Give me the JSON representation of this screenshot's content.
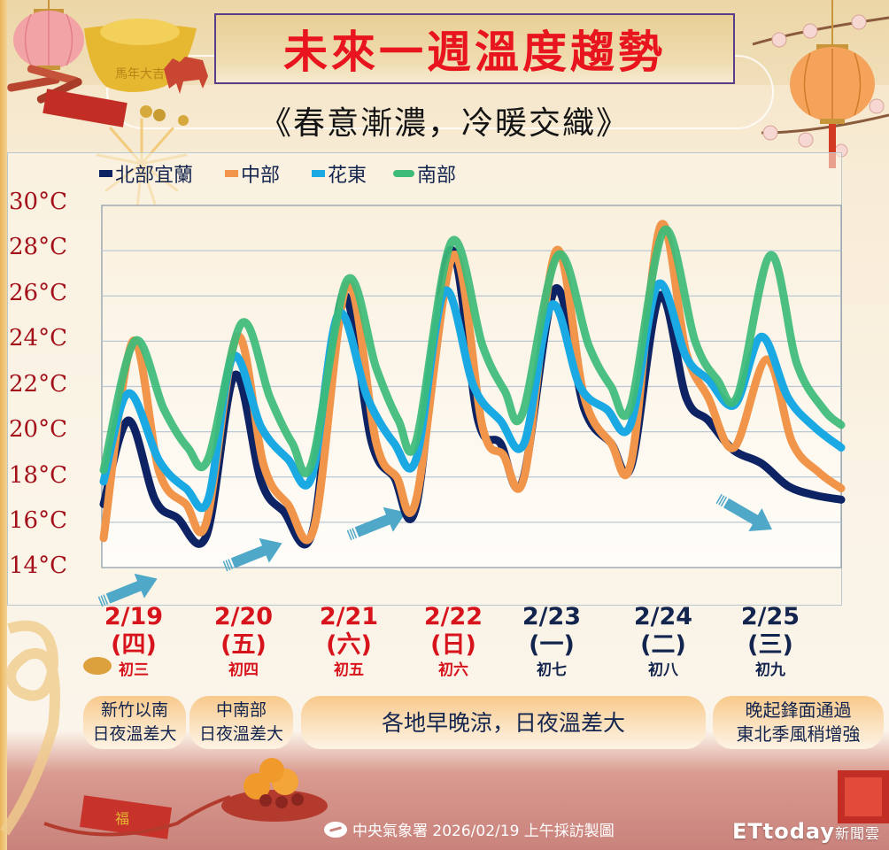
{
  "header": {
    "title": "未來一週溫度趨勢",
    "subtitle": "《春意漸濃，冷暖交織》"
  },
  "legend": [
    {
      "label": "北部宜蘭",
      "color": "#0d2363",
      "shape": "square"
    },
    {
      "label": "中部",
      "color": "#f0954a",
      "shape": "square"
    },
    {
      "label": "花東",
      "color": "#1aa9e3",
      "shape": "square"
    },
    {
      "label": "南部",
      "color": "#3dbb78",
      "shape": "round"
    }
  ],
  "y_axis": {
    "labels": [
      "30°C",
      "28°C",
      "26°C",
      "24°C",
      "22°C",
      "20°C",
      "18°C",
      "16°C",
      "14°C"
    ]
  },
  "days": [
    {
      "date": "2/19",
      "weekday": "(四)",
      "lunar": "初三",
      "color": "red"
    },
    {
      "date": "2/20",
      "weekday": "(五)",
      "lunar": "初四",
      "color": "red"
    },
    {
      "date": "2/21",
      "weekday": "(六)",
      "lunar": "初五",
      "color": "red"
    },
    {
      "date": "2/22",
      "weekday": "(日)",
      "lunar": "初六",
      "color": "red"
    },
    {
      "date": "2/23",
      "weekday": "(一)",
      "lunar": "初七",
      "color": "navy"
    },
    {
      "date": "2/24",
      "weekday": "(二)",
      "lunar": "初八",
      "color": "navy"
    },
    {
      "date": "2/25",
      "weekday": "(三)",
      "lunar": "初九",
      "color": "navy"
    }
  ],
  "notes": [
    {
      "line1": "新竹以南",
      "line2": "日夜溫差大"
    },
    {
      "line1": "中南部",
      "line2": "日夜溫差大"
    },
    {
      "line1": "各地早晚涼，日夜溫差大",
      "line2": ""
    },
    {
      "line1": "晚起鋒面通過",
      "line2": "東北季風稍增強"
    }
  ],
  "footer": {
    "source": "中央氣象署 2026/02/19 上午採訪製圖",
    "brand": "ETtoday",
    "brand_suffix": "新聞雲"
  },
  "chart_data": {
    "type": "line",
    "title": "未來一週溫度趨勢",
    "subtitle": "《春意漸濃，冷暖交織》",
    "xlabel": "",
    "ylabel": "",
    "ylim": [
      14,
      30
    ],
    "yticks": [
      14,
      16,
      18,
      20,
      22,
      24,
      26,
      28,
      30
    ],
    "grid": true,
    "legend_position": "top",
    "categories": [
      "2/19 (四) 初三",
      "2/20 (五) 初四",
      "2/21 (六) 初五",
      "2/22 (日) 初六",
      "2/23 (一) 初七",
      "2/24 (二) 初八",
      "2/25 (三) 初九"
    ],
    "daily_summary": [
      {
        "day": "2/19",
        "北部宜蘭": [
          15.4,
          20.5
        ],
        "中部": [
          16.0,
          24.0
        ],
        "花東": [
          17.0,
          21.7
        ],
        "南部": [
          18.8,
          24.0
        ]
      },
      {
        "day": "2/20",
        "北部宜蘭": [
          15.6,
          22.5
        ],
        "中部": [
          15.8,
          24.2
        ],
        "花東": [
          18.0,
          23.3
        ],
        "南部": [
          18.6,
          24.8
        ]
      },
      {
        "day": "2/21",
        "北部宜蘭": [
          16.7,
          26.0
        ],
        "中部": [
          17.0,
          26.5
        ],
        "花東": [
          18.8,
          25.2
        ],
        "南部": [
          19.6,
          26.7
        ]
      },
      {
        "day": "2/22",
        "北部宜蘭": [
          17.8,
          28.0
        ],
        "中部": [
          18.0,
          27.8
        ],
        "花東": [
          19.5,
          26.2
        ],
        "南部": [
          20.8,
          28.4
        ]
      },
      {
        "day": "2/23",
        "北部宜蘭": [
          18.5,
          26.3
        ],
        "中部": [
          18.7,
          28.0
        ],
        "花東": [
          20.3,
          25.6
        ],
        "南部": [
          21.1,
          27.8
        ]
      },
      {
        "day": "2/24",
        "北部宜蘭": [
          19.2,
          26.0
        ],
        "中部": [
          19.3,
          29.1
        ],
        "花東": [
          21.2,
          26.5
        ],
        "南部": [
          21.6,
          28.9
        ]
      },
      {
        "day": "2/25",
        "北部宜蘭": [
          17.0,
          18.6
        ],
        "中部": [
          17.5,
          23.2
        ],
        "花東": [
          19.3,
          24.2
        ],
        "南部": [
          20.3,
          27.8
        ]
      }
    ],
    "series": [
      {
        "name": "北部宜蘭",
        "color": "#0d2363",
        "points": [
          [
            117,
            16.8
          ],
          [
            145,
            20.5
          ],
          [
            175,
            17.0
          ],
          [
            200,
            16.2
          ],
          [
            233,
            15.4
          ],
          [
            265,
            22.5
          ],
          [
            295,
            17.8
          ],
          [
            320,
            16.5
          ],
          [
            353,
            15.6
          ],
          [
            387,
            26.0
          ],
          [
            420,
            19.5
          ],
          [
            445,
            18.0
          ],
          [
            470,
            16.7
          ],
          [
            508,
            28.0
          ],
          [
            540,
            20.5
          ],
          [
            565,
            19.5
          ],
          [
            590,
            17.8
          ],
          [
            627,
            26.3
          ],
          [
            660,
            21.0
          ],
          [
            690,
            19.5
          ],
          [
            713,
            18.5
          ],
          [
            745,
            26.0
          ],
          [
            775,
            21.5
          ],
          [
            800,
            20.5
          ],
          [
            828,
            19.2
          ],
          [
            860,
            18.6
          ],
          [
            890,
            17.6
          ],
          [
            920,
            17.2
          ],
          [
            950,
            17.0
          ]
        ]
      },
      {
        "name": "中部",
        "color": "#f0954a",
        "points": [
          [
            117,
            15.3
          ],
          [
            150,
            24.0
          ],
          [
            180,
            18.2
          ],
          [
            210,
            16.8
          ],
          [
            233,
            16.0
          ],
          [
            268,
            24.2
          ],
          [
            298,
            18.5
          ],
          [
            325,
            16.8
          ],
          [
            355,
            15.8
          ],
          [
            392,
            26.5
          ],
          [
            425,
            19.5
          ],
          [
            448,
            18.0
          ],
          [
            470,
            17.0
          ],
          [
            512,
            27.8
          ],
          [
            545,
            20.2
          ],
          [
            568,
            19.0
          ],
          [
            592,
            18.0
          ],
          [
            628,
            28.0
          ],
          [
            660,
            21.5
          ],
          [
            690,
            19.5
          ],
          [
            713,
            18.7
          ],
          [
            746,
            29.1
          ],
          [
            775,
            23.5
          ],
          [
            800,
            21.5
          ],
          [
            829,
            19.3
          ],
          [
            866,
            23.2
          ],
          [
            895,
            19.5
          ],
          [
            925,
            18.2
          ],
          [
            950,
            17.5
          ]
        ]
      },
      {
        "name": "花東",
        "color": "#1aa9e3",
        "points": [
          [
            117,
            17.8
          ],
          [
            145,
            21.7
          ],
          [
            180,
            18.7
          ],
          [
            210,
            17.5
          ],
          [
            235,
            17.0
          ],
          [
            263,
            23.3
          ],
          [
            295,
            20.2
          ],
          [
            325,
            18.8
          ],
          [
            352,
            18.0
          ],
          [
            382,
            25.2
          ],
          [
            415,
            21.5
          ],
          [
            445,
            19.5
          ],
          [
            470,
            18.8
          ],
          [
            502,
            26.2
          ],
          [
            535,
            22.0
          ],
          [
            565,
            20.5
          ],
          [
            592,
            19.5
          ],
          [
            623,
            25.6
          ],
          [
            655,
            22.0
          ],
          [
            685,
            21.0
          ],
          [
            712,
            20.3
          ],
          [
            743,
            26.5
          ],
          [
            775,
            23.3
          ],
          [
            800,
            22.3
          ],
          [
            830,
            21.2
          ],
          [
            860,
            24.2
          ],
          [
            890,
            21.5
          ],
          [
            920,
            20.2
          ],
          [
            950,
            19.3
          ]
        ]
      },
      {
        "name": "南部",
        "color": "#3dbb78",
        "points": [
          [
            117,
            18.3
          ],
          [
            152,
            24.0
          ],
          [
            185,
            21.0
          ],
          [
            212,
            19.3
          ],
          [
            235,
            18.8
          ],
          [
            273,
            24.8
          ],
          [
            305,
            21.5
          ],
          [
            330,
            19.5
          ],
          [
            352,
            18.6
          ],
          [
            392,
            26.7
          ],
          [
            425,
            22.8
          ],
          [
            450,
            20.5
          ],
          [
            470,
            19.6
          ],
          [
            510,
            28.4
          ],
          [
            545,
            23.8
          ],
          [
            570,
            21.8
          ],
          [
            590,
            20.8
          ],
          [
            630,
            27.8
          ],
          [
            665,
            23.8
          ],
          [
            690,
            22.0
          ],
          [
            712,
            21.1
          ],
          [
            750,
            28.9
          ],
          [
            785,
            24.0
          ],
          [
            810,
            22.3
          ],
          [
            833,
            21.6
          ],
          [
            870,
            27.8
          ],
          [
            900,
            23.0
          ],
          [
            930,
            21.0
          ],
          [
            950,
            20.3
          ]
        ]
      }
    ],
    "annotations": [
      {
        "type": "arrow",
        "direction": "up-right",
        "position": "below 2/19"
      },
      {
        "type": "arrow",
        "direction": "up-right",
        "position": "2/20 night"
      },
      {
        "type": "arrow",
        "direction": "up-right",
        "position": "2/21 night"
      },
      {
        "type": "arrow",
        "direction": "down-right",
        "position": "2/25"
      }
    ]
  }
}
